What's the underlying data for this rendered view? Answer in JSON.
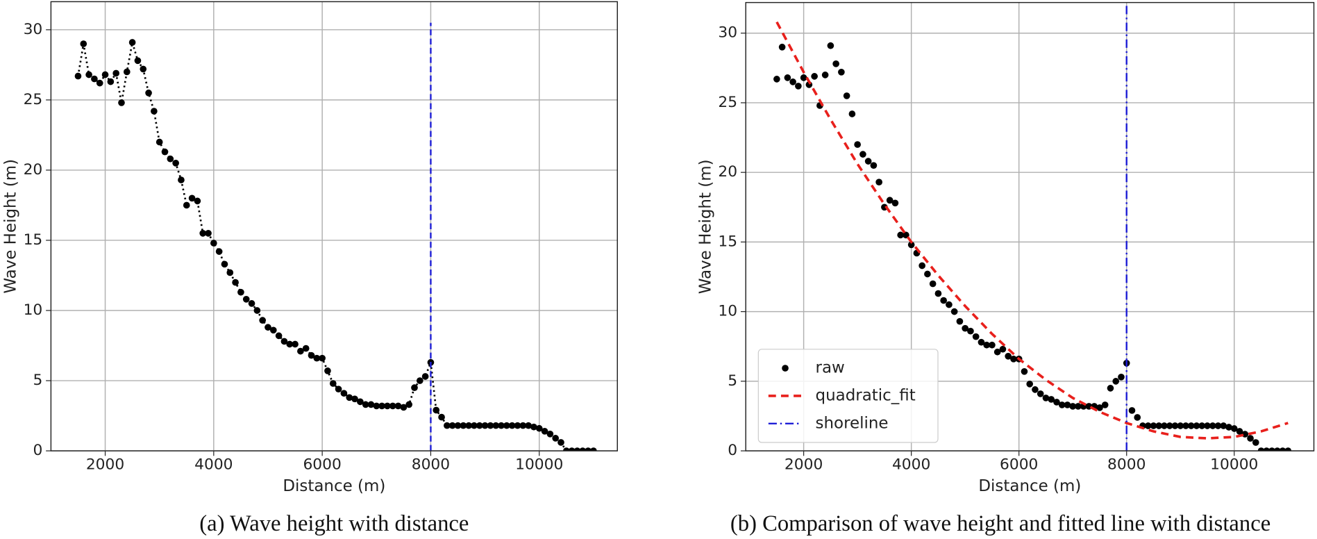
{
  "chart_data": [
    {
      "type": "line",
      "caption": "(a) Wave height with distance",
      "xlabel": "Distance (m)",
      "ylabel": "Wave Height (m)",
      "xlim": [
        1000,
        11440
      ],
      "xticks": [
        2000,
        4000,
        6000,
        8000,
        10000
      ],
      "ylim": [
        0,
        32
      ],
      "yticks": [
        0,
        5,
        10,
        15,
        20,
        25,
        30
      ],
      "grid": true,
      "legend": false,
      "series": [
        {
          "color": "#000000",
          "linestyle": "dotted",
          "marker": "o",
          "x": [
            1500,
            1600,
            1700,
            1800,
            1900,
            2000,
            2100,
            2200,
            2300,
            2400,
            2500,
            2600,
            2700,
            2800,
            2900,
            3000,
            3100,
            3200,
            3300,
            3400,
            3500,
            3600,
            3700,
            3800,
            3900,
            4000,
            4100,
            4200,
            4300,
            4400,
            4500,
            4600,
            4700,
            4800,
            4900,
            5000,
            5100,
            5200,
            5300,
            5400,
            5500,
            5600,
            5700,
            5800,
            5900,
            6000,
            6100,
            6200,
            6300,
            6400,
            6500,
            6600,
            6700,
            6800,
            6900,
            7000,
            7100,
            7200,
            7300,
            7400,
            7500,
            7600,
            7700,
            7800,
            7900,
            8000,
            8100,
            8200,
            8300,
            8400,
            8500,
            8600,
            8700,
            8800,
            8900,
            9000,
            9100,
            9200,
            9300,
            9400,
            9500,
            9600,
            9700,
            9800,
            9900,
            10000,
            10100,
            10200,
            10300,
            10400,
            10500,
            10600,
            10700,
            10800,
            10900,
            11000
          ],
          "values": [
            26.7,
            29.0,
            26.8,
            26.5,
            26.2,
            26.8,
            26.3,
            26.9,
            24.8,
            27.0,
            29.1,
            27.8,
            27.2,
            25.5,
            24.2,
            22.0,
            21.3,
            20.8,
            20.5,
            19.3,
            17.5,
            18.0,
            17.8,
            15.5,
            15.5,
            14.8,
            14.2,
            13.3,
            12.7,
            12.0,
            11.3,
            10.8,
            10.5,
            10.0,
            9.3,
            8.8,
            8.6,
            8.2,
            7.8,
            7.6,
            7.6,
            7.1,
            7.3,
            6.8,
            6.6,
            6.6,
            5.7,
            4.8,
            4.4,
            4.1,
            3.8,
            3.7,
            3.5,
            3.3,
            3.3,
            3.2,
            3.2,
            3.2,
            3.2,
            3.2,
            3.1,
            3.3,
            4.5,
            5.0,
            5.3,
            6.3,
            2.9,
            2.4,
            1.8,
            1.8,
            1.8,
            1.8,
            1.8,
            1.8,
            1.8,
            1.8,
            1.8,
            1.8,
            1.8,
            1.8,
            1.8,
            1.8,
            1.8,
            1.8,
            1.7,
            1.6,
            1.4,
            1.2,
            0.9,
            0.6,
            0,
            0,
            0,
            0,
            0,
            0
          ]
        },
        {
          "color": "#1f1fd6",
          "linestyle": "dashed",
          "marker": "none",
          "x": [
            8000,
            8000
          ],
          "values": [
            0,
            30.5
          ]
        }
      ]
    },
    {
      "type": "line",
      "caption": "(b) Comparison of wave height and fitted line with distance",
      "xlabel": "Distance (m)",
      "ylabel": "Wave Height (m)",
      "xlim": [
        924,
        11480
      ],
      "xticks": [
        2000,
        4000,
        6000,
        8000,
        10000
      ],
      "ylim": [
        0,
        32.2
      ],
      "yticks": [
        0,
        5,
        10,
        15,
        20,
        25,
        30
      ],
      "grid": true,
      "legend": "lower left",
      "series": [
        {
          "name": "raw",
          "color": "#000000",
          "linestyle": "none",
          "marker": "o",
          "x": [
            1500,
            1600,
            1700,
            1800,
            1900,
            2000,
            2100,
            2200,
            2300,
            2400,
            2500,
            2600,
            2700,
            2800,
            2900,
            3000,
            3100,
            3200,
            3300,
            3400,
            3500,
            3600,
            3700,
            3800,
            3900,
            4000,
            4100,
            4200,
            4300,
            4400,
            4500,
            4600,
            4700,
            4800,
            4900,
            5000,
            5100,
            5200,
            5300,
            5400,
            5500,
            5600,
            5700,
            5800,
            5900,
            6000,
            6100,
            6200,
            6300,
            6400,
            6500,
            6600,
            6700,
            6800,
            6900,
            7000,
            7100,
            7200,
            7300,
            7400,
            7500,
            7600,
            7700,
            7800,
            7900,
            8000,
            8100,
            8200,
            8300,
            8400,
            8500,
            8600,
            8700,
            8800,
            8900,
            9000,
            9100,
            9200,
            9300,
            9400,
            9500,
            9600,
            9700,
            9800,
            9900,
            10000,
            10100,
            10200,
            10300,
            10400,
            10500,
            10600,
            10700,
            10800,
            10900,
            11000
          ],
          "values": [
            26.7,
            29.0,
            26.8,
            26.5,
            26.2,
            26.8,
            26.3,
            26.9,
            24.8,
            27.0,
            29.1,
            27.8,
            27.2,
            25.5,
            24.2,
            22.0,
            21.3,
            20.8,
            20.5,
            19.3,
            17.5,
            18.0,
            17.8,
            15.5,
            15.5,
            14.8,
            14.2,
            13.3,
            12.7,
            12.0,
            11.3,
            10.8,
            10.5,
            10.0,
            9.3,
            8.8,
            8.6,
            8.2,
            7.8,
            7.6,
            7.6,
            7.1,
            7.3,
            6.8,
            6.6,
            6.6,
            5.7,
            4.8,
            4.4,
            4.1,
            3.8,
            3.7,
            3.5,
            3.3,
            3.3,
            3.2,
            3.2,
            3.2,
            3.2,
            3.2,
            3.1,
            3.3,
            4.5,
            5.0,
            5.3,
            6.3,
            2.9,
            2.4,
            1.8,
            1.8,
            1.8,
            1.8,
            1.8,
            1.8,
            1.8,
            1.8,
            1.8,
            1.8,
            1.8,
            1.8,
            1.8,
            1.8,
            1.8,
            1.8,
            1.7,
            1.6,
            1.4,
            1.2,
            0.9,
            0.6,
            0,
            0,
            0,
            0,
            0,
            0
          ]
        },
        {
          "name": "quadratic_fit",
          "color": "#e8201c",
          "linestyle": "dashed",
          "marker": "none",
          "x": [
            1500,
            2000,
            2500,
            3000,
            3500,
            4000,
            4500,
            5000,
            5500,
            6000,
            6500,
            7000,
            7500,
            8000,
            8500,
            9000,
            9500,
            10000,
            10500,
            11000
          ],
          "values": [
            30.8,
            27.2,
            23.8,
            20.6,
            17.7,
            15.0,
            12.6,
            10.4,
            8.4,
            6.6,
            5.1,
            3.8,
            2.8,
            2.0,
            1.4,
            1.0,
            0.9,
            1.0,
            1.4,
            2.0
          ]
        },
        {
          "name": "shoreline",
          "color": "#1f1fd6",
          "linestyle": "dashdot",
          "marker": "none",
          "x": [
            8000,
            8000
          ],
          "values": [
            0,
            32.2
          ]
        }
      ]
    }
  ]
}
